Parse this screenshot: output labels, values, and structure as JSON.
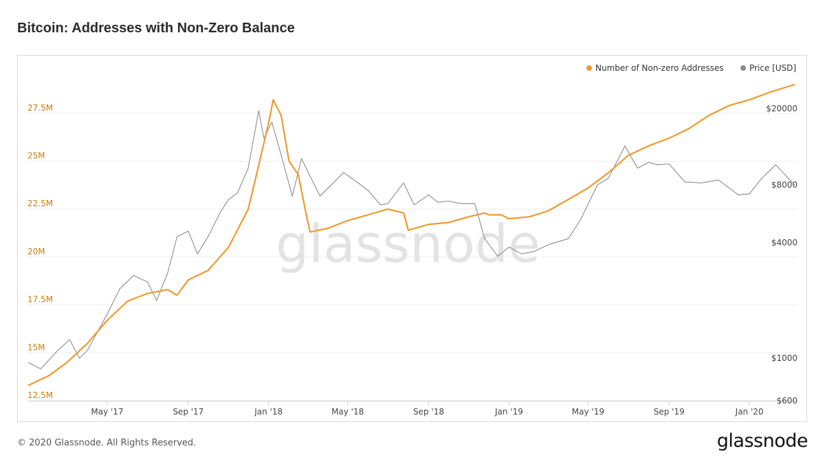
{
  "title": "Bitcoin: Addresses with Non-Zero Balance",
  "footer": {
    "copyright": "© 2020 Glassnode. All Rights Reserved.",
    "logo_text": "glassnode"
  },
  "watermark": "glassnode",
  "colors": {
    "addresses": "#f09a2b",
    "price": "#8c8c8c",
    "left_axis_text": "#c57d12",
    "grid": "#eeeeee"
  },
  "chart_data": {
    "type": "line",
    "title": "Bitcoin: Addresses with Non-Zero Balance",
    "x_ticks": [
      "May '17",
      "Sep '17",
      "Jan '18",
      "May '18",
      "Sep '18",
      "Jan '19",
      "May '19",
      "Sep '19",
      "Jan '20"
    ],
    "x_range": [
      "2017-01-01",
      "2020-03-15"
    ],
    "y_left": {
      "ticks": [
        "12.5M",
        "15M",
        "17.5M",
        "20M",
        "22.5M",
        "25M",
        "27.5M"
      ],
      "range": [
        12.5,
        29.5
      ],
      "unit": "M"
    },
    "y_right": {
      "ticks": [
        "$600",
        "$1000",
        "$4000",
        "$8000",
        "$20000"
      ],
      "scale": "log",
      "range": [
        600,
        30000
      ]
    },
    "legend": {
      "placement": "top-right"
    },
    "series": [
      {
        "name": "Number of Non-zero Addresses",
        "axis": "left",
        "x": [
          "2017-01-01",
          "2017-02-01",
          "2017-03-01",
          "2017-04-01",
          "2017-05-01",
          "2017-06-01",
          "2017-07-01",
          "2017-08-01",
          "2017-08-15",
          "2017-09-01",
          "2017-10-01",
          "2017-11-01",
          "2017-12-01",
          "2017-12-15",
          "2018-01-01",
          "2018-01-08",
          "2018-01-20",
          "2018-02-01",
          "2018-02-15",
          "2018-03-01",
          "2018-03-05",
          "2018-04-01",
          "2018-05-01",
          "2018-06-01",
          "2018-07-01",
          "2018-07-25",
          "2018-08-01",
          "2018-09-01",
          "2018-10-01",
          "2018-11-01",
          "2018-11-25",
          "2018-12-01",
          "2018-12-20",
          "2019-01-01",
          "2019-02-01",
          "2019-03-01",
          "2019-04-01",
          "2019-05-01",
          "2019-06-01",
          "2019-07-01",
          "2019-08-01",
          "2019-09-01",
          "2019-10-01",
          "2019-11-01",
          "2019-12-01",
          "2020-01-01",
          "2020-02-01",
          "2020-03-10"
        ],
        "values": [
          13.3,
          13.8,
          14.5,
          15.5,
          16.7,
          17.7,
          18.1,
          18.3,
          18.0,
          18.8,
          19.3,
          20.5,
          22.5,
          24.5,
          27.0,
          28.2,
          27.4,
          25.0,
          24.3,
          21.9,
          21.3,
          21.5,
          21.9,
          22.2,
          22.5,
          22.3,
          21.4,
          21.7,
          21.8,
          22.1,
          22.3,
          22.2,
          22.2,
          22.0,
          22.1,
          22.4,
          23.0,
          23.6,
          24.4,
          25.3,
          25.8,
          26.2,
          26.7,
          27.4,
          27.9,
          28.2,
          28.6,
          29.0
        ]
      },
      {
        "name": "Price [USD]",
        "axis": "right",
        "x": [
          "2017-01-01",
          "2017-01-20",
          "2017-02-15",
          "2017-03-05",
          "2017-03-20",
          "2017-04-01",
          "2017-05-01",
          "2017-05-20",
          "2017-06-10",
          "2017-07-01",
          "2017-07-15",
          "2017-08-01",
          "2017-08-15",
          "2017-09-01",
          "2017-09-15",
          "2017-10-01",
          "2017-10-20",
          "2017-11-01",
          "2017-11-15",
          "2017-12-01",
          "2017-12-17",
          "2017-12-25",
          "2018-01-06",
          "2018-01-20",
          "2018-02-06",
          "2018-02-20",
          "2018-03-01",
          "2018-03-20",
          "2018-04-06",
          "2018-04-25",
          "2018-05-15",
          "2018-06-01",
          "2018-06-20",
          "2018-07-01",
          "2018-07-25",
          "2018-08-10",
          "2018-09-01",
          "2018-09-15",
          "2018-10-01",
          "2018-10-20",
          "2018-11-10",
          "2018-11-25",
          "2018-12-15",
          "2019-01-01",
          "2019-01-20",
          "2019-02-08",
          "2019-03-01",
          "2019-04-01",
          "2019-04-20",
          "2019-05-15",
          "2019-06-01",
          "2019-06-26",
          "2019-07-15",
          "2019-08-01",
          "2019-08-15",
          "2019-09-01",
          "2019-09-25",
          "2019-10-20",
          "2019-11-15",
          "2019-12-15",
          "2020-01-01",
          "2020-01-20",
          "2020-02-10",
          "2020-03-01",
          "2020-03-10"
        ],
        "values": [
          950,
          880,
          1100,
          1250,
          1000,
          1100,
          1700,
          2300,
          2700,
          2500,
          2000,
          2800,
          4300,
          4600,
          3500,
          4300,
          5800,
          6700,
          7300,
          9800,
          19500,
          14000,
          17000,
          11500,
          7000,
          11000,
          9500,
          7000,
          8000,
          9300,
          8300,
          7500,
          6300,
          6400,
          8200,
          6300,
          7100,
          6500,
          6600,
          6400,
          6400,
          4200,
          3400,
          3800,
          3500,
          3600,
          3900,
          4200,
          5300,
          8000,
          8700,
          12800,
          9800,
          10500,
          10200,
          10300,
          8300,
          8200,
          8500,
          7100,
          7200,
          8700,
          10200,
          8600,
          8000
        ]
      }
    ]
  }
}
